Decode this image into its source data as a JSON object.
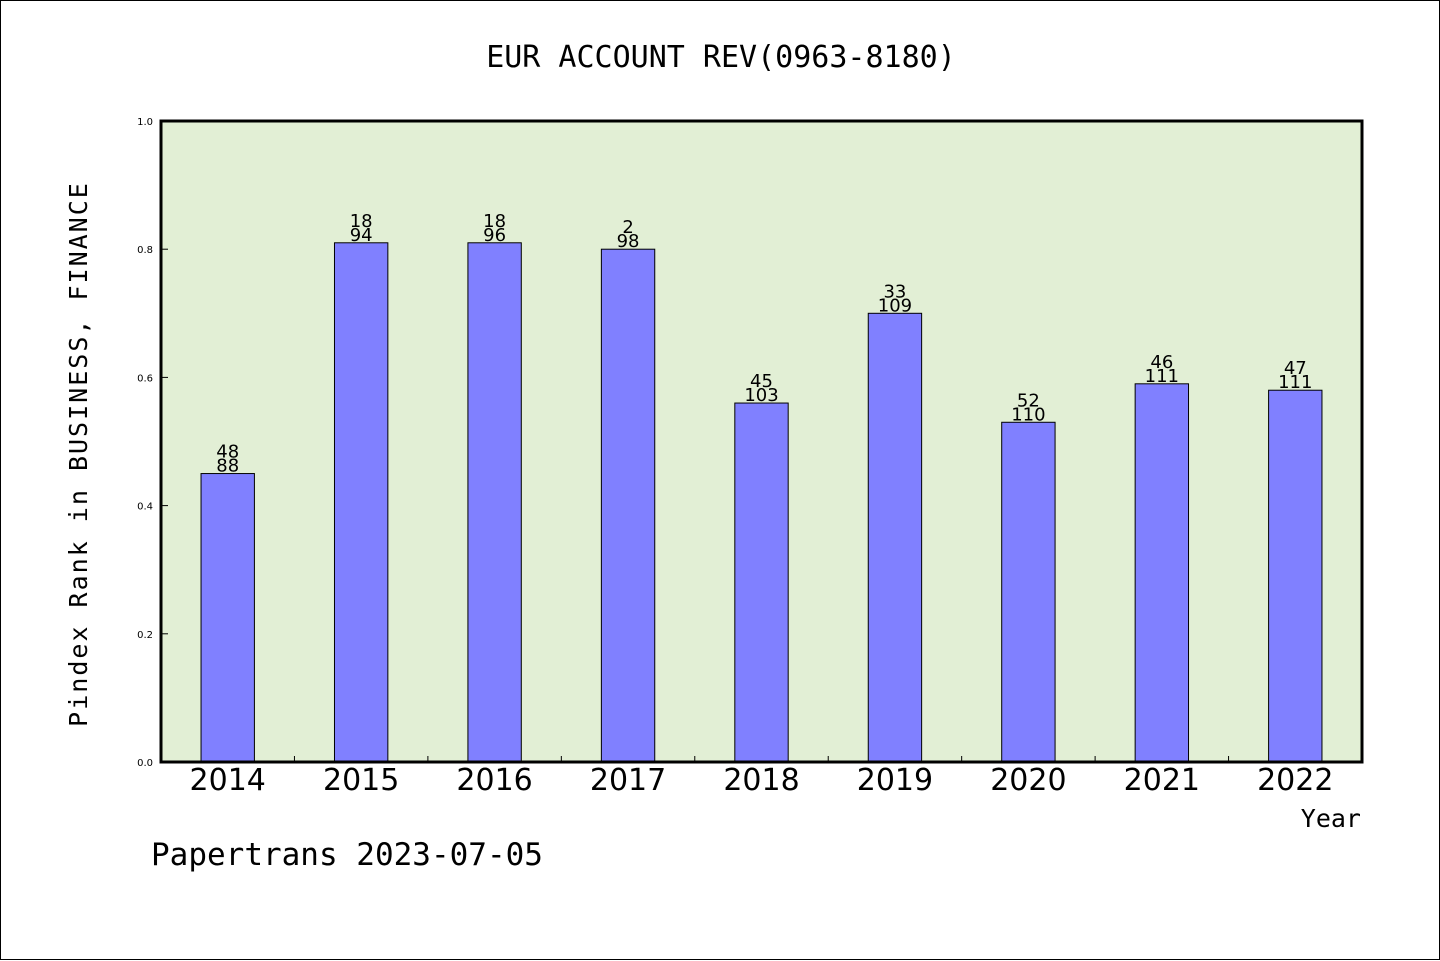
{
  "chart_data": {
    "type": "bar",
    "title": "EUR ACCOUNT REV(0963-8180)",
    "xlabel": "Year",
    "ylabel": "Pindex Rank in BUSINESS, FINANCE",
    "credit": "Papertrans 2023-07-05",
    "categories": [
      "2014",
      "2015",
      "2016",
      "2017",
      "2018",
      "2019",
      "2020",
      "2021",
      "2022"
    ],
    "values": [
      0.45,
      0.81,
      0.81,
      0.8,
      0.56,
      0.7,
      0.53,
      0.59,
      0.58
    ],
    "label_top": [
      "48",
      "18",
      "18",
      "2",
      "45",
      "33",
      "52",
      "46",
      "47"
    ],
    "label_bottom": [
      "88",
      "94",
      "96",
      "98",
      "103",
      "109",
      "110",
      "111",
      "111"
    ],
    "ylim": [
      0.0,
      1.0
    ],
    "yticks": [
      "0.0",
      "0.2",
      "0.4",
      "0.6",
      "0.8",
      "1.0"
    ],
    "grid": false,
    "legend": "none",
    "colors": {
      "bar_fill": "#8080ff",
      "plot_background": "#e2efd5",
      "axis": "#000000"
    }
  }
}
